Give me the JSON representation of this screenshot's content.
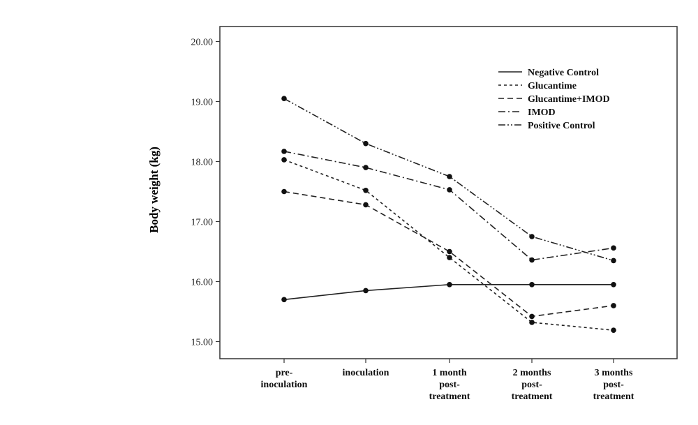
{
  "chart_data": {
    "type": "line",
    "ylabel": "Body weight (kg)",
    "xlabel": "",
    "categories": [
      "pre-\ninoculation",
      "inoculation",
      "1 month\npost-\ntreatment",
      "2 months\npost-\ntreatment",
      "3 months\npost-\ntreatment"
    ],
    "ylim": [
      14.85,
      20.25
    ],
    "yticks": [
      "15.00",
      "16.00",
      "17.00",
      "18.00",
      "19.00",
      "20.00"
    ],
    "ytick_values": [
      15,
      16,
      17,
      18,
      19,
      20
    ],
    "grid": false,
    "legend_position": "top-right",
    "series": [
      {
        "name": "Negative Control",
        "dash": "solid",
        "values": [
          15.7,
          15.85,
          15.95,
          15.95,
          15.95
        ]
      },
      {
        "name": "Glucantime",
        "dash": "short-dash",
        "values": [
          18.03,
          17.52,
          16.4,
          15.32,
          15.19
        ]
      },
      {
        "name": "Glucantime+IMOD",
        "dash": "long-dash",
        "values": [
          17.5,
          17.28,
          16.5,
          15.42,
          15.6
        ]
      },
      {
        "name": "IMOD",
        "dash": "dash-dot",
        "values": [
          18.17,
          17.9,
          17.53,
          16.36,
          16.56
        ]
      },
      {
        "name": "Positive Control",
        "dash": "dash-dot-dot",
        "values": [
          19.05,
          18.3,
          17.75,
          16.75,
          16.35
        ]
      }
    ]
  }
}
